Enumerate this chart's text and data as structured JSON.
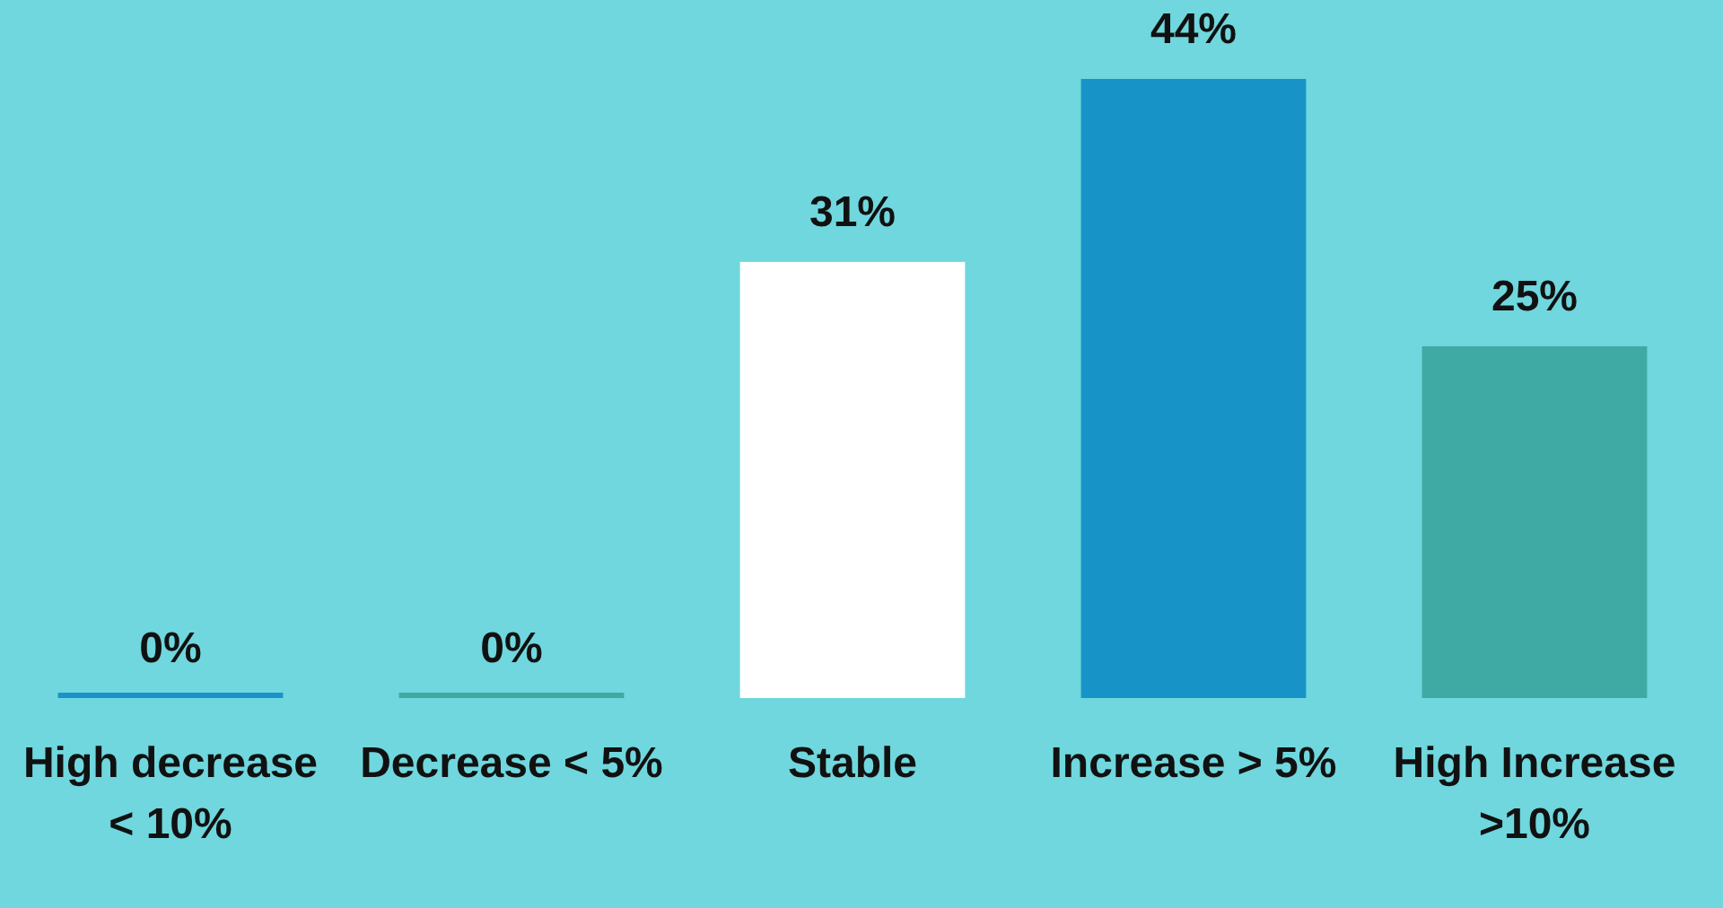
{
  "chart_data": {
    "type": "bar",
    "categories": [
      "High decrease < 10%",
      "Decrease < 5%",
      "Stable",
      "Increase > 5%",
      "High Increase >10%"
    ],
    "values": [
      0,
      0,
      31,
      44,
      25
    ],
    "colors": [
      "#1a93c8",
      "#3faaa2",
      "#ffffff",
      "#1793c8",
      "#3eaaa3"
    ],
    "value_labels": [
      "0%",
      "0%",
      "31%",
      "44%",
      "25%"
    ]
  }
}
